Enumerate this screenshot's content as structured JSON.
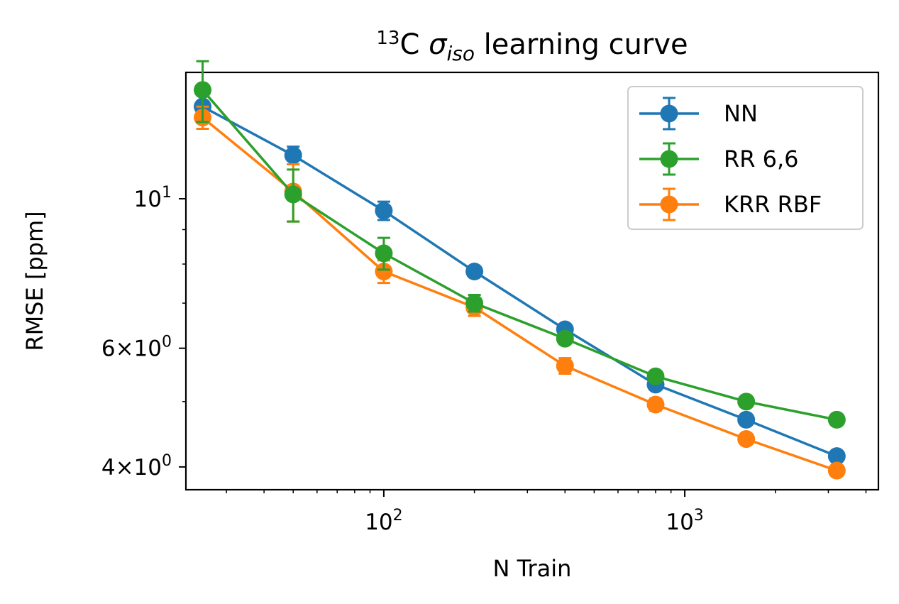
{
  "chart_data": {
    "type": "line",
    "title": {
      "sup": "13",
      "element": "C ",
      "symbol": "σ",
      "subscript": "iso",
      "rest": " learning curve"
    },
    "xlabel": "N Train",
    "ylabel": "RMSE [ppm]",
    "xscale": "log",
    "yscale": "log",
    "xlim": [
      22,
      4400
    ],
    "ylim": [
      3.7,
      15.4
    ],
    "grid": false,
    "legend_position": "top-right",
    "x_ticks": [
      {
        "value": 100,
        "base": "10",
        "exp": "2"
      },
      {
        "value": 1000,
        "base": "10",
        "exp": "3"
      }
    ],
    "y_ticks": [
      {
        "value": 4,
        "mantissa": "4",
        "base": "10",
        "exp": "0"
      },
      {
        "value": 6,
        "mantissa": "6",
        "base": "10",
        "exp": "0"
      },
      {
        "value": 10,
        "mantissa": "",
        "base": "10",
        "exp": "1"
      }
    ],
    "x": [
      25,
      50,
      100,
      200,
      400,
      800,
      1600,
      3200
    ],
    "series": [
      {
        "name": "NN",
        "color": "#1f77b4",
        "values": [
          13.7,
          11.6,
          9.6,
          7.8,
          6.4,
          5.3,
          4.7,
          4.15
        ],
        "errors": [
          0.25,
          0.35,
          0.3,
          0.12,
          0.1,
          0.06,
          0.05,
          0.04
        ]
      },
      {
        "name": "RR 6,6",
        "color": "#2ca02c",
        "values": [
          14.5,
          10.15,
          8.3,
          7.0,
          6.2,
          5.45,
          5.0,
          4.7
        ],
        "errors": [
          1.5,
          0.9,
          0.45,
          0.2,
          0.08,
          0.05,
          0.04,
          0.03
        ]
      },
      {
        "name": "KRR RBF",
        "color": "#ff7f0e",
        "values": [
          13.2,
          10.25,
          7.8,
          6.9,
          5.65,
          4.95,
          4.4,
          3.95
        ],
        "errors": [
          0.5,
          1.0,
          0.3,
          0.2,
          0.15,
          0.1,
          0.06,
          0.04
        ]
      }
    ]
  }
}
